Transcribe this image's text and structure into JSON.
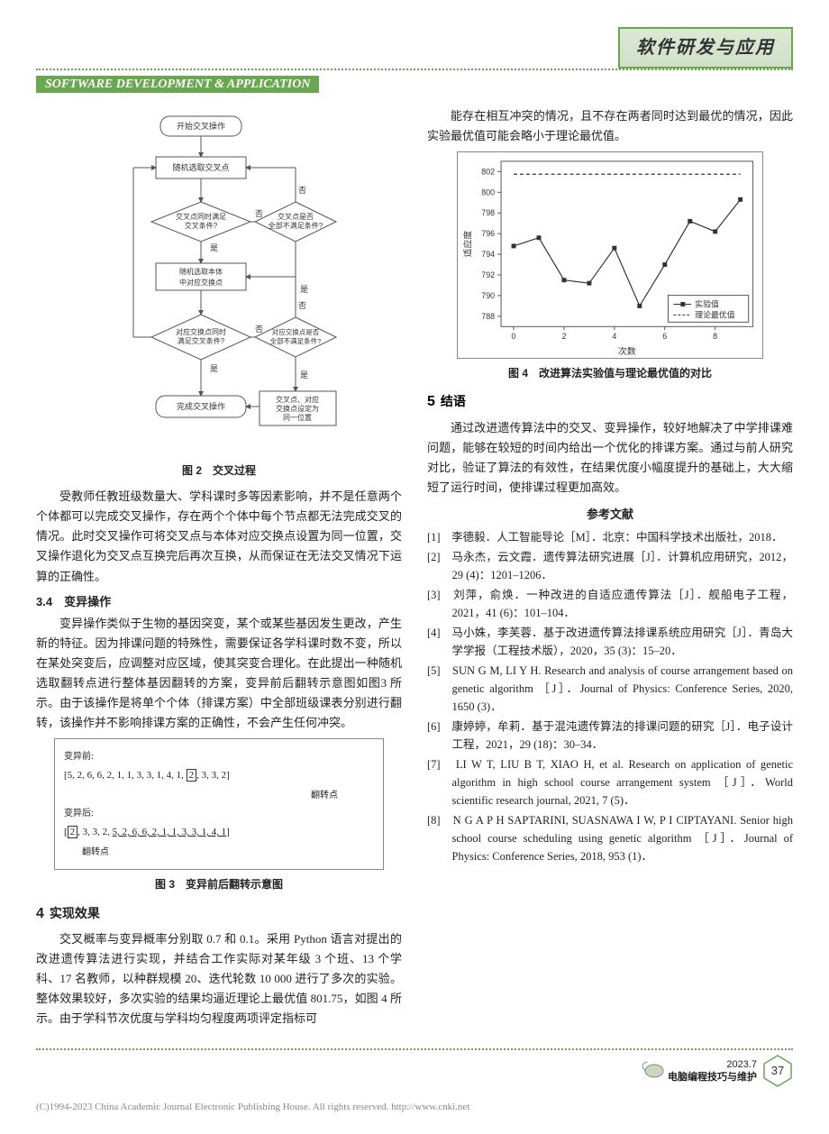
{
  "header": {
    "chinese_title": "软件研发与应用",
    "english_title": "SOFTWARE DEVELOPMENT & APPLICATION"
  },
  "flowchart": {
    "caption": "图 2　交叉过程",
    "nodes": {
      "start": "开始交叉操作",
      "rand_cross": "随机选取交叉点",
      "cond1": "交叉点同时满足\n交叉条件?",
      "cond1_no": "交叉点是否\n全部不满足条件?",
      "rand_swap": "随机选取本体\n中对应交换点",
      "cond2": "对应交换点同时\n满足交叉条件?",
      "cond2_no": "对应交换点是否\n全部不满足条件?",
      "done": "完成交叉操作",
      "merge": "交叉点、对应\n交换点设定为\n同一位置"
    },
    "labels": {
      "yes": "是",
      "no": "否"
    },
    "colors": {
      "stroke": "#555",
      "fill": "#fff",
      "text": "#333"
    }
  },
  "col1": {
    "p1": "受教师任教班级数量大、学科课时多等因素影响，并不是任意两个个体都可以完成交叉操作，存在两个个体中每个节点都无法完成交叉的情况。此时交叉操作可将交叉点与本体对应交换点设置为同一位置，交叉操作退化为交叉点互换完后再次互换，从而保证在无法交叉情况下运算的正确性。",
    "sub34": "3.4　变异操作",
    "p2": "变异操作类似于生物的基因突变，某个或某些基因发生更改，产生新的特征。因为排课问题的特殊性，需要保证各学科课时数不变，所以在某处突变后，应调整对应区域，使其突变合理化。在此提出一种随机选取翻转点进行整体基因翻转的方案，变异前后翻转示意图如图3 所示。由于该操作是将单个个体（排课方案）中全部班级课表分别进行翻转，该操作并不影响排课方案的正确性，不会产生任何冲突。",
    "mutation": {
      "before_label": "变异前:",
      "before": "[5, 2, 6, 6, 2, 1, 1, 3, 3, 1, 4, 1, ",
      "before_flip": "2",
      "before_tail": ", 3, 3, 2]",
      "flip_label": "翻转点",
      "after_label": "变异后:",
      "after_flip": "2",
      "after": ", 3, 3, 2, ",
      "after_underlined": "5, 2, 6, 6, 2, 1, 1, 3, 3, 1, 4, 1",
      "after_tail": "]"
    },
    "fig3_caption": "图 3　变异前后翻转示意图",
    "sec4": "实现效果",
    "sec4_num": "4",
    "p3": "交叉概率与变异概率分别取 0.7 和 0.1。采用 Python 语言对提出的改进遗传算法进行实现，并结合工作实际对某年级 3 个班、13 个学科、17 名教师，以种群规模 20、迭代轮数 10 000 进行了多次的实验。整体效果较好，多次实验的结果均逼近理论上最优值 801.75，如图 4 所示。由于学科节次优度与学科均匀程度两项评定指标可"
  },
  "col2": {
    "p0": "能存在相互冲突的情况，且不存在两者同时达到最优的情况，因此实验最优值可能会略小于理论最优值。",
    "linechart": {
      "caption": "图 4　改进算法实验值与理论最优值的对比",
      "xlabel": "次数",
      "ylabel": "适应度",
      "ylim": [
        787,
        803
      ],
      "yticks": [
        788,
        790,
        792,
        794,
        796,
        798,
        800,
        802
      ],
      "xlim": [
        -0.5,
        9.5
      ],
      "xticks": [
        0,
        2,
        4,
        6,
        8
      ],
      "background": "#ffffff",
      "grid_color": "#888888",
      "series": [
        {
          "name": "实验值",
          "color": "#333333",
          "style": "solid",
          "marker": "square",
          "data": [
            [
              0,
              794.8
            ],
            [
              1,
              795.6
            ],
            [
              2,
              791.5
            ],
            [
              3,
              791.2
            ],
            [
              4,
              794.6
            ],
            [
              5,
              789.0
            ],
            [
              6,
              793.0
            ],
            [
              7,
              797.2
            ],
            [
              8,
              796.2
            ],
            [
              9,
              799.3
            ]
          ]
        },
        {
          "name": "理论最优值",
          "color": "#333333",
          "style": "dash",
          "marker": "none",
          "data": [
            [
              0,
              801.75
            ],
            [
              9,
              801.75
            ]
          ]
        }
      ],
      "legend_pos": "bottom-right"
    },
    "sec5_num": "5",
    "sec5": "结语",
    "p1": "通过改进遗传算法中的交叉、变异操作，较好地解决了中学排课难问题，能够在较短的时间内给出一个优化的排课方案。通过与前人研究对比，验证了算法的有效性，在结果优度小幅度提升的基础上，大大缩短了运行时间，使排课过程更加高效。",
    "refs_title": "参考文献",
    "refs": [
      "[1]　李德毅．人工智能导论［M］．北京：中国科学技术出版社，2018．",
      "[2]　马永杰，云文霞．遗传算法研究进展［J］．计算机应用研究，2012，29 (4)：1201–1206．",
      "[3]　刘萍，俞焕．一种改进的自适应遗传算法［J］．舰船电子工程，2021，41 (6)：101–104．",
      "[4]　马小姝，李芙蓉．基于改进遗传算法排课系统应用研究［J］．青岛大学学报（工程技术版），2020，35 (3)：15–20．",
      "[5]　SUN G M, LI Y H. Research and analysis of course arrangement based on genetic algorithm ［J］．Journal of Physics: Conference Series, 2020, 1650 (3)．",
      "[6]　康婷婷，牟莉．基于混沌遗传算法的排课问题的研究［J］．电子设计工程，2021，29 (18)：30–34．",
      "[7]　LI W T, LIU B T, XIAO H, et al. Research on application of genetic algorithm in high school course arrangement system ［J］．World scientific research journal, 2021, 7 (5)．",
      "[8]　N G A P H SAPTARINI, SUASNAWA I W, P I CIPTAYANI. Senior high school course scheduling using genetic algorithm ［J］．Journal of Physics: Conference Series, 2018, 953 (1)．"
    ]
  },
  "footer": {
    "date": "2023.7",
    "journal": "电脑编程技巧与维护",
    "page": "37",
    "copyright": "(C)1994-2023 China Academic Journal Electronic Publishing House. All rights reserved.    http://www.cnki.net"
  }
}
